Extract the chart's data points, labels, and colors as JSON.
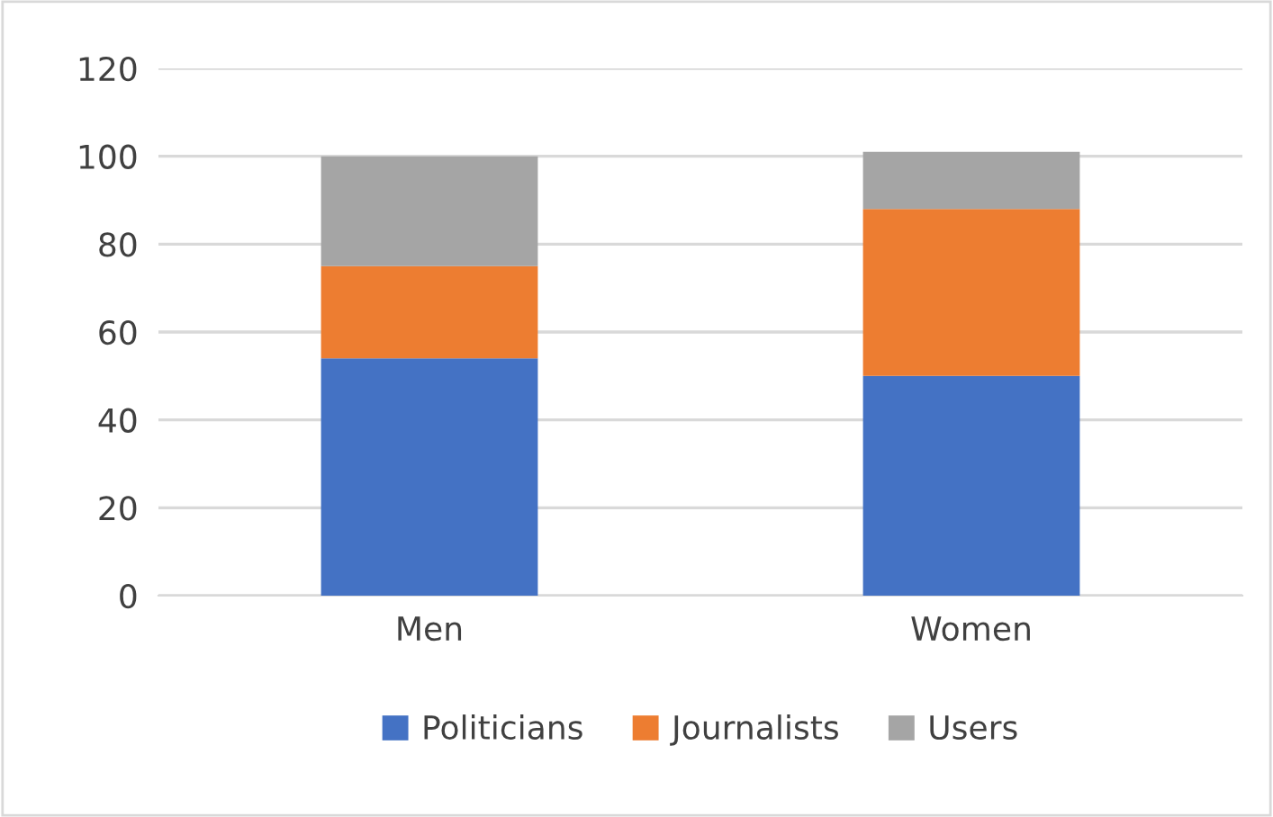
{
  "chart_data": {
    "type": "bar",
    "stacked": true,
    "categories": [
      "Men",
      "Women"
    ],
    "series": [
      {
        "name": "Politicians",
        "color": "#4472c4",
        "values": [
          54,
          50
        ]
      },
      {
        "name": "Journalists",
        "color": "#ed7d31",
        "values": [
          21,
          38
        ]
      },
      {
        "name": "Users",
        "color": "#a5a5a5",
        "values": [
          25,
          13
        ]
      }
    ],
    "ylim": [
      0,
      120
    ],
    "yticks": [
      0,
      20,
      40,
      60,
      80,
      100,
      120
    ],
    "grid": "y",
    "legend": "bottom"
  }
}
